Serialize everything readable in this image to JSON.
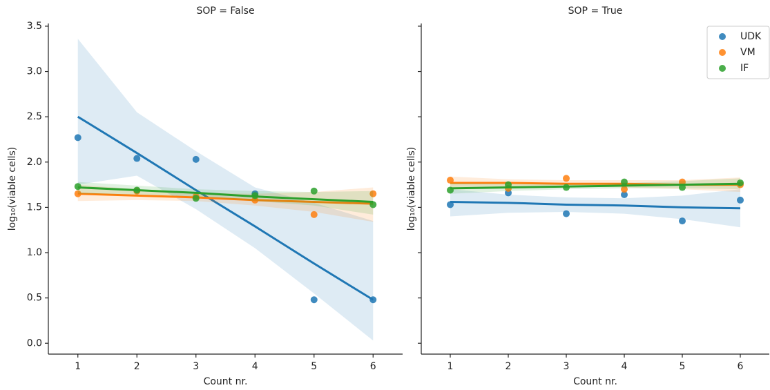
{
  "chart_data": [
    {
      "type": "scatter",
      "title": "SOP = False",
      "xlabel": "Count nr.",
      "ylabel": "log₁₀(viable cells)",
      "x": [
        1,
        2,
        3,
        4,
        5,
        6
      ],
      "xlim": [
        0.5,
        6.5
      ],
      "ylim": [
        -0.12,
        3.53
      ],
      "xticks": [
        1,
        2,
        3,
        4,
        5,
        6
      ],
      "yticks": [
        0.0,
        0.5,
        1.0,
        1.5,
        2.0,
        2.5,
        3.0,
        3.5
      ],
      "ytick_labels": true,
      "series": [
        {
          "color": "#1f77b4",
          "values": [
            2.27,
            2.04,
            2.03,
            1.65,
            0.48,
            0.48
          ],
          "fit": [
            2.5,
            2.1,
            1.69,
            1.29,
            0.88,
            0.48
          ],
          "ci_lower": [
            1.75,
            1.85,
            1.48,
            1.05,
            0.55,
            0.03
          ],
          "ci_upper": [
            3.36,
            2.55,
            2.12,
            1.72,
            1.55,
            1.35
          ]
        },
        {
          "color": "#ff7f0e",
          "values": [
            1.65,
            1.68,
            1.62,
            1.58,
            1.42,
            1.65
          ],
          "fit": [
            1.65,
            1.63,
            1.61,
            1.58,
            1.56,
            1.54
          ],
          "ci_lower": [
            1.57,
            1.58,
            1.57,
            1.52,
            1.45,
            1.34
          ],
          "ci_upper": [
            1.75,
            1.7,
            1.66,
            1.65,
            1.67,
            1.72
          ]
        },
        {
          "color": "#2ca02c",
          "values": [
            1.73,
            1.69,
            1.6,
            1.63,
            1.68,
            1.53
          ],
          "fit": [
            1.72,
            1.69,
            1.66,
            1.62,
            1.59,
            1.56
          ],
          "ci_lower": [
            1.65,
            1.64,
            1.62,
            1.57,
            1.52,
            1.42
          ],
          "ci_upper": [
            1.78,
            1.74,
            1.7,
            1.68,
            1.67,
            1.68
          ]
        }
      ]
    },
    {
      "type": "scatter",
      "title": "SOP = True",
      "xlabel": "Count nr.",
      "ylabel": "log₁₀(viable cells)",
      "x": [
        1,
        2,
        3,
        4,
        5,
        6
      ],
      "xlim": [
        0.5,
        6.5
      ],
      "ylim": [
        -0.12,
        3.53
      ],
      "xticks": [
        1,
        2,
        3,
        4,
        5,
        6
      ],
      "yticks": [
        0.0,
        0.5,
        1.0,
        1.5,
        2.0,
        2.5,
        3.0,
        3.5
      ],
      "ytick_labels": false,
      "legend": "upper right",
      "series": [
        {
          "name": "UDK",
          "color": "#1f77b4",
          "values": [
            1.53,
            1.66,
            1.43,
            1.64,
            1.35,
            1.58
          ],
          "fit": [
            1.56,
            1.55,
            1.53,
            1.52,
            1.5,
            1.49
          ],
          "ci_lower": [
            1.4,
            1.44,
            1.45,
            1.43,
            1.37,
            1.28
          ],
          "ci_upper": [
            1.7,
            1.64,
            1.61,
            1.6,
            1.63,
            1.7
          ]
        },
        {
          "name": "VM",
          "color": "#ff7f0e",
          "values": [
            1.8,
            1.71,
            1.82,
            1.7,
            1.78,
            1.75
          ],
          "fit": [
            1.77,
            1.77,
            1.76,
            1.76,
            1.75,
            1.75
          ],
          "ci_lower": [
            1.71,
            1.73,
            1.73,
            1.72,
            1.7,
            1.67
          ],
          "ci_upper": [
            1.84,
            1.81,
            1.8,
            1.8,
            1.8,
            1.83
          ]
        },
        {
          "name": "IF",
          "color": "#2ca02c",
          "values": [
            1.69,
            1.75,
            1.72,
            1.78,
            1.72,
            1.77
          ],
          "fit": [
            1.71,
            1.72,
            1.73,
            1.74,
            1.75,
            1.76
          ],
          "ci_lower": [
            1.65,
            1.68,
            1.7,
            1.71,
            1.71,
            1.7
          ],
          "ci_upper": [
            1.77,
            1.76,
            1.76,
            1.77,
            1.79,
            1.82
          ]
        }
      ]
    }
  ]
}
